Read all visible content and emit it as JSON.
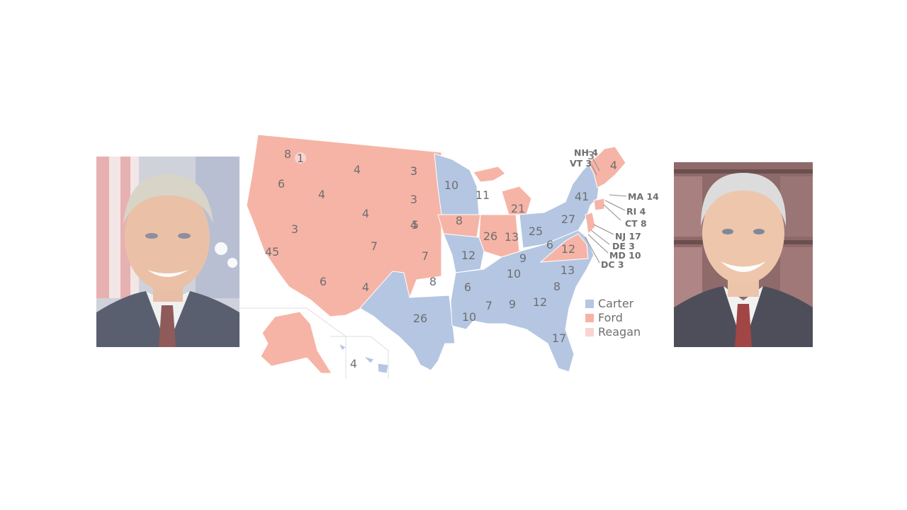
{
  "colors": {
    "carter": "#b4c6e2",
    "ford": "#f6b4a6",
    "reagan": "#f8d4d2",
    "border": "#ffffff",
    "text": "#6f6f6f"
  },
  "legend": [
    {
      "key": "carter",
      "label": "Carter"
    },
    {
      "key": "ford",
      "label": "Ford"
    },
    {
      "key": "reagan",
      "label": "Reagan"
    }
  ],
  "map_labels": [
    {
      "value": "8",
      "party": "ford"
    },
    {
      "value": "1",
      "party": "reagan"
    },
    {
      "value": "6",
      "party": "ford"
    },
    {
      "value": "4",
      "party": "ford"
    },
    {
      "value": "4",
      "party": "ford"
    },
    {
      "value": "3",
      "party": "ford"
    },
    {
      "value": "3",
      "party": "ford"
    },
    {
      "value": "45",
      "party": "ford"
    },
    {
      "value": "4",
      "party": "ford"
    },
    {
      "value": "3",
      "party": "ford"
    },
    {
      "value": "7",
      "party": "ford"
    },
    {
      "value": "6",
      "party": "ford"
    },
    {
      "value": "4",
      "party": "ford"
    },
    {
      "value": "3",
      "party": "ford"
    },
    {
      "value": "4",
      "party": "ford"
    },
    {
      "value": "5",
      "party": "ford"
    },
    {
      "value": "7",
      "party": "ford"
    },
    {
      "value": "8",
      "party": "ford"
    },
    {
      "value": "26",
      "party": "carter"
    },
    {
      "value": "10",
      "party": "carter"
    },
    {
      "value": "8",
      "party": "ford"
    },
    {
      "value": "12",
      "party": "carter"
    },
    {
      "value": "6",
      "party": "carter"
    },
    {
      "value": "10",
      "party": "carter"
    },
    {
      "value": "11",
      "party": "carter"
    },
    {
      "value": "26",
      "party": "ford"
    },
    {
      "value": "13",
      "party": "ford"
    },
    {
      "value": "21",
      "party": "ford"
    },
    {
      "value": "25",
      "party": "carter"
    },
    {
      "value": "9",
      "party": "carter"
    },
    {
      "value": "10",
      "party": "carter"
    },
    {
      "value": "7",
      "party": "carter"
    },
    {
      "value": "9",
      "party": "carter"
    },
    {
      "value": "12",
      "party": "carter"
    },
    {
      "value": "17",
      "party": "carter"
    },
    {
      "value": "8",
      "party": "carter"
    },
    {
      "value": "13",
      "party": "carter"
    },
    {
      "value": "12",
      "party": "ford"
    },
    {
      "value": "6",
      "party": "carter"
    },
    {
      "value": "27",
      "party": "carter"
    },
    {
      "value": "41",
      "party": "carter"
    },
    {
      "value": "4",
      "party": "ford"
    },
    {
      "value": "3",
      "party": "ford"
    },
    {
      "value": "4",
      "party": "carter"
    }
  ],
  "callouts": [
    {
      "label": "NH 4",
      "party": "carter"
    },
    {
      "label": "VT 3",
      "party": "ford"
    },
    {
      "label": "MA 14",
      "party": "carter"
    },
    {
      "label": "RI 4",
      "party": "carter"
    },
    {
      "label": "CT 8",
      "party": "ford"
    },
    {
      "label": "NJ 17",
      "party": "ford"
    },
    {
      "label": "DE 3",
      "party": "carter"
    },
    {
      "label": "MD 10",
      "party": "carter"
    },
    {
      "label": "DC 3",
      "party": "carter"
    }
  ]
}
